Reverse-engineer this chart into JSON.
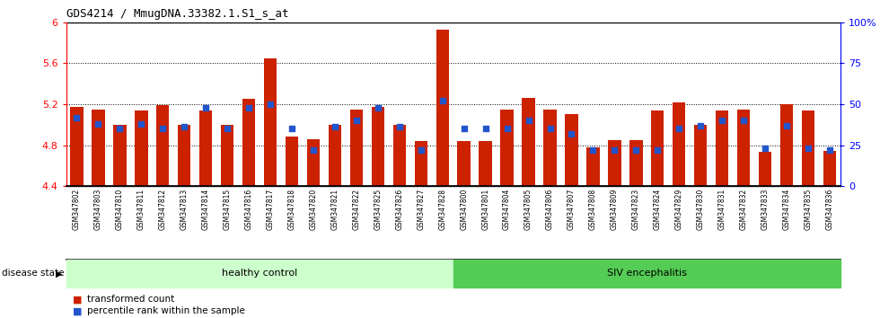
{
  "title": "GDS4214 / MmugDNA.33382.1.S1_s_at",
  "samples": [
    "GSM347802",
    "GSM347803",
    "GSM347810",
    "GSM347811",
    "GSM347812",
    "GSM347813",
    "GSM347814",
    "GSM347815",
    "GSM347816",
    "GSM347817",
    "GSM347818",
    "GSM347820",
    "GSM347821",
    "GSM347822",
    "GSM347825",
    "GSM347826",
    "GSM347827",
    "GSM347828",
    "GSM347800",
    "GSM347801",
    "GSM347804",
    "GSM347805",
    "GSM347806",
    "GSM347807",
    "GSM347808",
    "GSM347809",
    "GSM347823",
    "GSM347824",
    "GSM347829",
    "GSM347830",
    "GSM347831",
    "GSM347832",
    "GSM347833",
    "GSM347834",
    "GSM347835",
    "GSM347836"
  ],
  "red_values": [
    5.17,
    5.15,
    5.0,
    5.14,
    5.19,
    5.0,
    5.14,
    5.0,
    5.25,
    5.65,
    4.88,
    4.86,
    5.0,
    5.15,
    5.17,
    5.0,
    4.84,
    5.93,
    4.84,
    4.84,
    5.15,
    5.26,
    5.15,
    5.1,
    4.78,
    4.85,
    4.85,
    5.14,
    5.22,
    5.0,
    5.14,
    5.15,
    4.73,
    5.2,
    5.14,
    4.74
  ],
  "percentile_values": [
    42,
    38,
    35,
    38,
    35,
    36,
    48,
    35,
    48,
    50,
    35,
    22,
    36,
    40,
    48,
    36,
    22,
    52,
    35,
    35,
    35,
    40,
    35,
    32,
    22,
    22,
    22,
    22,
    35,
    37,
    40,
    40,
    23,
    37,
    23,
    22
  ],
  "healthy_count": 18,
  "ylim_left": [
    4.4,
    6.0
  ],
  "ylim_right": [
    0,
    100
  ],
  "yticks_left": [
    4.4,
    4.8,
    5.2,
    5.6,
    6.0
  ],
  "ytick_labels_left": [
    "4.4",
    "4.8",
    "5.2",
    "5.6",
    "6"
  ],
  "yticks_right": [
    0,
    25,
    50,
    75,
    100
  ],
  "ytick_labels_right": [
    "0",
    "25",
    "50",
    "75",
    "100%"
  ],
  "bar_color": "#cc2200",
  "dot_color": "#2255cc",
  "healthy_color": "#ccffcc",
  "siv_color": "#55cc55",
  "group_label_healthy": "healthy control",
  "group_label_siv": "SIV encephalitis",
  "disease_state_label": "disease state",
  "legend_red": "transformed count",
  "legend_blue": "percentile rank within the sample",
  "tick_area_color": "#d8d8d8"
}
